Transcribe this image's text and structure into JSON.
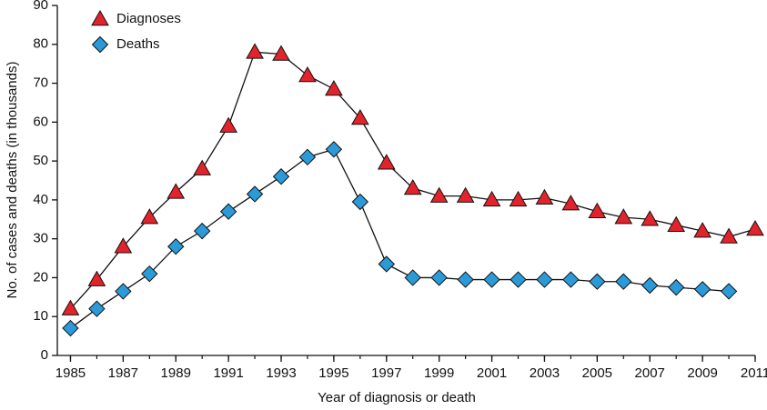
{
  "chart_data": {
    "type": "line",
    "x_label": "Year of diagnosis or death",
    "y_label": "No. of cases and deaths (in thousands)",
    "x": [
      1985,
      1986,
      1987,
      1988,
      1989,
      1990,
      1991,
      1992,
      1993,
      1994,
      1995,
      1996,
      1997,
      1998,
      1999,
      2000,
      2001,
      2002,
      2003,
      2004,
      2005,
      2006,
      2007,
      2008,
      2009,
      2010,
      2011
    ],
    "series": [
      {
        "name": "Diagnoses",
        "color": "#e3232b",
        "marker": "triangle",
        "values": [
          12,
          19.5,
          28,
          35.5,
          42,
          48,
          59,
          78,
          77.5,
          72,
          68.5,
          61,
          49.5,
          43,
          41,
          41,
          40,
          40,
          40.5,
          39,
          37,
          35.5,
          35,
          33.5,
          32,
          30.5,
          32.5
        ]
      },
      {
        "name": "Deaths",
        "color": "#2b9ad8",
        "marker": "diamond",
        "values": [
          7,
          12,
          16.5,
          21,
          28,
          32,
          37,
          41.5,
          46,
          51,
          53,
          39.5,
          23.5,
          20,
          20,
          19.5,
          19.5,
          19.5,
          19.5,
          19.5,
          19,
          19,
          18,
          17.5,
          17,
          16.5,
          null
        ]
      }
    ],
    "xlim": [
      1984.5,
      2011
    ],
    "xticks": [
      1985,
      1987,
      1989,
      1991,
      1993,
      1995,
      1997,
      1999,
      2001,
      2003,
      2005,
      2007,
      2009,
      2011
    ],
    "ylim": [
      0,
      90
    ],
    "yticks": [
      0,
      10,
      20,
      30,
      40,
      50,
      60,
      70,
      80,
      90
    ],
    "grid": false,
    "legend": "upper-left"
  }
}
